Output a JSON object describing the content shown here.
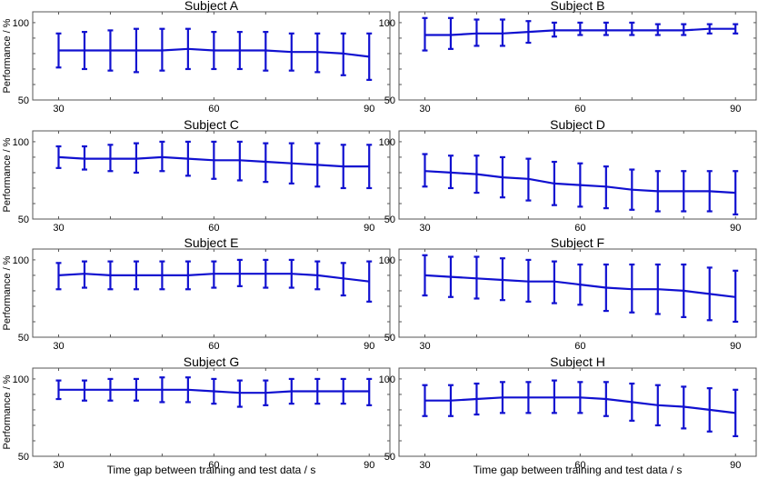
{
  "figure": {
    "xlabel": "Time gap between training and test data / s",
    "ylabel": "Performance / %"
  },
  "chart_data": [
    {
      "type": "line",
      "title": "Subject A",
      "xlim": [
        25,
        94
      ],
      "ylim": [
        50,
        107
      ],
      "xticks": [
        30,
        60,
        90
      ],
      "yticks": [
        50,
        100
      ],
      "x": [
        30,
        35,
        40,
        45,
        50,
        55,
        60,
        65,
        70,
        75,
        80,
        85,
        90
      ],
      "values": [
        82,
        82,
        82,
        82,
        82,
        83,
        82,
        82,
        82,
        81,
        81,
        80,
        78
      ],
      "err_low": [
        71,
        70,
        69,
        68,
        69,
        70,
        70,
        70,
        69,
        69,
        68,
        66,
        63
      ],
      "err_high": [
        93,
        94,
        95,
        96,
        96,
        96,
        94,
        94,
        94,
        93,
        93,
        93,
        93
      ]
    },
    {
      "type": "line",
      "title": "Subject B",
      "xlim": [
        25,
        94
      ],
      "ylim": [
        50,
        107
      ],
      "xticks": [
        30,
        60,
        90
      ],
      "yticks": [
        50,
        100
      ],
      "x": [
        30,
        35,
        40,
        45,
        50,
        55,
        60,
        65,
        70,
        75,
        80,
        85,
        90
      ],
      "values": [
        92,
        92,
        93,
        93,
        94,
        95,
        95,
        95,
        95,
        95,
        95,
        96,
        96
      ],
      "err_low": [
        82,
        83,
        85,
        85,
        87,
        91,
        92,
        92,
        92,
        92,
        92,
        93,
        93
      ],
      "err_high": [
        103,
        103,
        102,
        102,
        101,
        100,
        100,
        100,
        100,
        99,
        99,
        99,
        99
      ]
    },
    {
      "type": "line",
      "title": "Subject C",
      "xlim": [
        25,
        94
      ],
      "ylim": [
        50,
        107
      ],
      "xticks": [
        30,
        60,
        90
      ],
      "yticks": [
        50,
        100
      ],
      "x": [
        30,
        35,
        40,
        45,
        50,
        55,
        60,
        65,
        70,
        75,
        80,
        85,
        90
      ],
      "values": [
        90,
        89,
        89,
        89,
        90,
        89,
        88,
        88,
        87,
        86,
        85,
        84,
        84
      ],
      "err_low": [
        83,
        82,
        81,
        80,
        81,
        78,
        76,
        75,
        74,
        73,
        71,
        70,
        70
      ],
      "err_high": [
        97,
        97,
        98,
        99,
        100,
        100,
        100,
        100,
        99,
        99,
        99,
        98,
        98
      ]
    },
    {
      "type": "line",
      "title": "Subject D",
      "xlim": [
        25,
        94
      ],
      "ylim": [
        50,
        107
      ],
      "xticks": [
        30,
        60,
        90
      ],
      "yticks": [
        50,
        100
      ],
      "x": [
        30,
        35,
        40,
        45,
        50,
        55,
        60,
        65,
        70,
        75,
        80,
        85,
        90
      ],
      "values": [
        81,
        80,
        79,
        77,
        76,
        73,
        72,
        71,
        69,
        68,
        68,
        68,
        67
      ],
      "err_low": [
        71,
        70,
        67,
        64,
        62,
        59,
        58,
        57,
        56,
        55,
        55,
        55,
        53
      ],
      "err_high": [
        92,
        91,
        91,
        90,
        89,
        87,
        86,
        84,
        82,
        81,
        81,
        81,
        81
      ]
    },
    {
      "type": "line",
      "title": "Subject E",
      "xlim": [
        25,
        94
      ],
      "ylim": [
        50,
        107
      ],
      "xticks": [
        30,
        60,
        90
      ],
      "yticks": [
        50,
        100
      ],
      "x": [
        30,
        35,
        40,
        45,
        50,
        55,
        60,
        65,
        70,
        75,
        80,
        85,
        90
      ],
      "values": [
        90,
        91,
        90,
        90,
        90,
        90,
        91,
        91,
        91,
        91,
        90,
        88,
        86
      ],
      "err_low": [
        81,
        82,
        81,
        81,
        81,
        81,
        82,
        83,
        82,
        82,
        81,
        77,
        73
      ],
      "err_high": [
        98,
        99,
        99,
        99,
        99,
        99,
        99,
        100,
        100,
        100,
        99,
        98,
        99
      ]
    },
    {
      "type": "line",
      "title": "Subject F",
      "xlim": [
        25,
        94
      ],
      "ylim": [
        50,
        107
      ],
      "xticks": [
        30,
        60,
        90
      ],
      "yticks": [
        50,
        100
      ],
      "x": [
        30,
        35,
        40,
        45,
        50,
        55,
        60,
        65,
        70,
        75,
        80,
        85,
        90
      ],
      "values": [
        90,
        89,
        88,
        87,
        86,
        86,
        84,
        82,
        81,
        81,
        80,
        78,
        76
      ],
      "err_low": [
        77,
        76,
        75,
        74,
        73,
        72,
        71,
        67,
        66,
        65,
        63,
        61,
        60
      ],
      "err_high": [
        103,
        102,
        102,
        101,
        100,
        99,
        97,
        97,
        97,
        97,
        97,
        95,
        93
      ]
    },
    {
      "type": "line",
      "title": "Subject G",
      "xlim": [
        25,
        94
      ],
      "ylim": [
        50,
        107
      ],
      "xticks": [
        30,
        60,
        90
      ],
      "yticks": [
        50,
        100
      ],
      "x": [
        30,
        35,
        40,
        45,
        50,
        55,
        60,
        65,
        70,
        75,
        80,
        85,
        90
      ],
      "values": [
        93,
        93,
        93,
        93,
        93,
        93,
        92,
        91,
        91,
        92,
        92,
        92,
        92
      ],
      "err_low": [
        87,
        86,
        86,
        86,
        85,
        85,
        84,
        82,
        83,
        84,
        84,
        84,
        83
      ],
      "err_high": [
        99,
        99,
        100,
        100,
        101,
        101,
        100,
        99,
        99,
        100,
        100,
        100,
        100
      ]
    },
    {
      "type": "line",
      "title": "Subject H",
      "xlim": [
        25,
        94
      ],
      "ylim": [
        50,
        107
      ],
      "xticks": [
        30,
        60,
        90
      ],
      "yticks": [
        50,
        100
      ],
      "x": [
        30,
        35,
        40,
        45,
        50,
        55,
        60,
        65,
        70,
        75,
        80,
        85,
        90
      ],
      "values": [
        86,
        86,
        87,
        88,
        88,
        88,
        88,
        87,
        85,
        83,
        82,
        80,
        78
      ],
      "err_low": [
        76,
        76,
        77,
        78,
        78,
        78,
        78,
        76,
        73,
        70,
        68,
        66,
        63
      ],
      "err_high": [
        96,
        96,
        97,
        98,
        98,
        99,
        98,
        98,
        97,
        96,
        95,
        94,
        93
      ]
    }
  ]
}
